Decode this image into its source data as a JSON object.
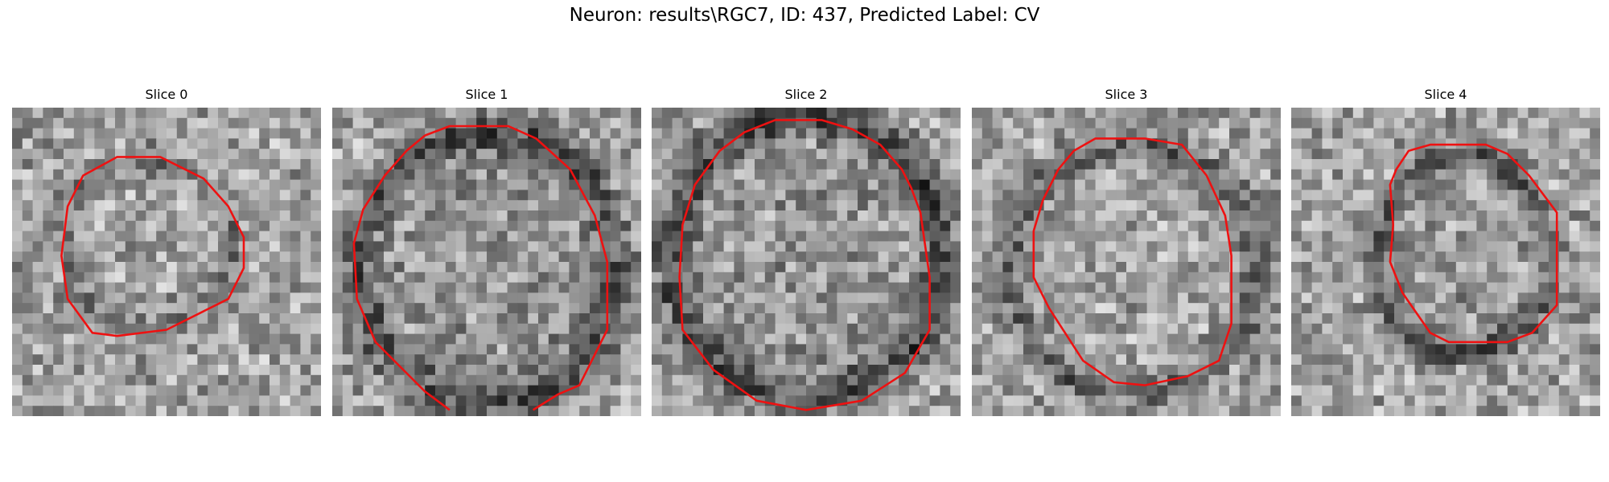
{
  "figure": {
    "title": "Neuron: results\\RGC7, ID: 437, Predicted Label: CV"
  },
  "panels": [
    {
      "title": "Slice 0"
    },
    {
      "title": "Slice 1"
    },
    {
      "title": "Slice 2"
    },
    {
      "title": "Slice 3"
    },
    {
      "title": "Slice 4"
    }
  ],
  "colors": {
    "contour": "#ee1111",
    "image_colormap": "grayscale"
  }
}
